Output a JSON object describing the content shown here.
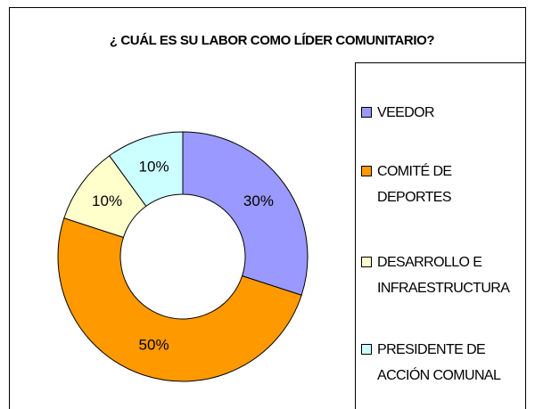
{
  "chart_data": {
    "type": "donut",
    "title": "¿ CUÁL ES SU LABOR COMO LÍDER COMUNITARIO?",
    "categories": [
      "VEEDOR",
      "COMITÉ DE DEPORTES",
      "DESARROLLO E INFRAESTRUCTURA",
      "PRESIDENTE DE ACCIÓN COMUNAL"
    ],
    "values": [
      30,
      50,
      10,
      10
    ],
    "value_labels": [
      "30%",
      "50%",
      "10%",
      "10%"
    ],
    "colors": [
      "#9999ff",
      "#ff9900",
      "#ffffcc",
      "#ccffff"
    ],
    "legend": "right"
  }
}
